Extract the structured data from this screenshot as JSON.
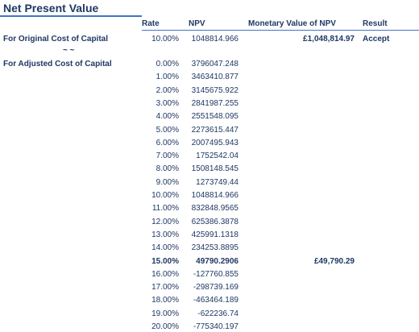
{
  "title": "Net Present Value",
  "headers": {
    "rate": "Rate",
    "npv": "NPV",
    "monetary": "Monetary Value of NPV",
    "result": "Result"
  },
  "original": {
    "label": "For Original Cost of Capital",
    "separator": "~ ~",
    "rate": "10.00%",
    "npv": "1048814.966",
    "monetary": "£1,048,814.97",
    "result": "Accept"
  },
  "adjusted": {
    "label": "For Adjusted Cost of Capital",
    "rows": [
      {
        "rate": "0.00%",
        "npv": "3796047.248",
        "monetary": "",
        "highlight": false
      },
      {
        "rate": "1.00%",
        "npv": "3463410.877",
        "monetary": "",
        "highlight": false
      },
      {
        "rate": "2.00%",
        "npv": "3145675.922",
        "monetary": "",
        "highlight": false
      },
      {
        "rate": "3.00%",
        "npv": "2841987.255",
        "monetary": "",
        "highlight": false
      },
      {
        "rate": "4.00%",
        "npv": "2551548.095",
        "monetary": "",
        "highlight": false
      },
      {
        "rate": "5.00%",
        "npv": "2273615.447",
        "monetary": "",
        "highlight": false
      },
      {
        "rate": "6.00%",
        "npv": "2007495.943",
        "monetary": "",
        "highlight": false
      },
      {
        "rate": "7.00%",
        "npv": "1752542.04",
        "monetary": "",
        "highlight": false
      },
      {
        "rate": "8.00%",
        "npv": "1508148.545",
        "monetary": "",
        "highlight": false
      },
      {
        "rate": "9.00%",
        "npv": "1273749.44",
        "monetary": "",
        "highlight": false
      },
      {
        "rate": "10.00%",
        "npv": "1048814.966",
        "monetary": "",
        "highlight": false
      },
      {
        "rate": "11.00%",
        "npv": "832848.9565",
        "monetary": "",
        "highlight": false
      },
      {
        "rate": "12.00%",
        "npv": "625386.3878",
        "monetary": "",
        "highlight": false
      },
      {
        "rate": "13.00%",
        "npv": "425991.1318",
        "monetary": "",
        "highlight": false
      },
      {
        "rate": "14.00%",
        "npv": "234253.8895",
        "monetary": "",
        "highlight": false
      },
      {
        "rate": "15.00%",
        "npv": "49790.2906",
        "monetary": "£49,790.29",
        "highlight": true
      },
      {
        "rate": "16.00%",
        "npv": "-127760.855",
        "monetary": "",
        "highlight": false
      },
      {
        "rate": "17.00%",
        "npv": "-298739.169",
        "monetary": "",
        "highlight": false
      },
      {
        "rate": "18.00%",
        "npv": "-463464.189",
        "monetary": "",
        "highlight": false
      },
      {
        "rate": "19.00%",
        "npv": "-622236.74",
        "monetary": "",
        "highlight": false
      },
      {
        "rate": "20.00%",
        "npv": "-775340.197",
        "monetary": "",
        "highlight": false
      }
    ]
  }
}
